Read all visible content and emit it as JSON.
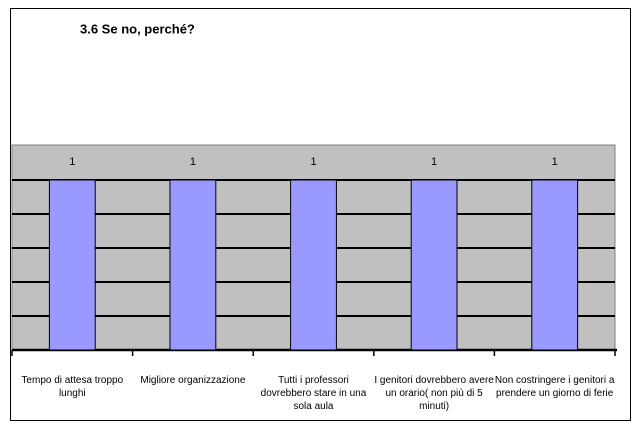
{
  "chart_data": {
    "type": "bar",
    "title": "3.6  Se  no, perché?",
    "categories": [
      "Tempo di attesa troppo lunghi",
      "Migliore organizzazione",
      "Tutti i professori dovrebbero stare in una sola aula",
      "I genitori dovrebbero avere un orario( non più di 5 minuti)",
      "Non costringere i genitori a prendere un giorno di ferie"
    ],
    "values": [
      1,
      1,
      1,
      1,
      1
    ],
    "color": "#9999ff",
    "ylim": [
      0,
      1
    ],
    "yticks": [
      0,
      0.2,
      0.4,
      0.6,
      0.8,
      1
    ],
    "grid": true
  }
}
